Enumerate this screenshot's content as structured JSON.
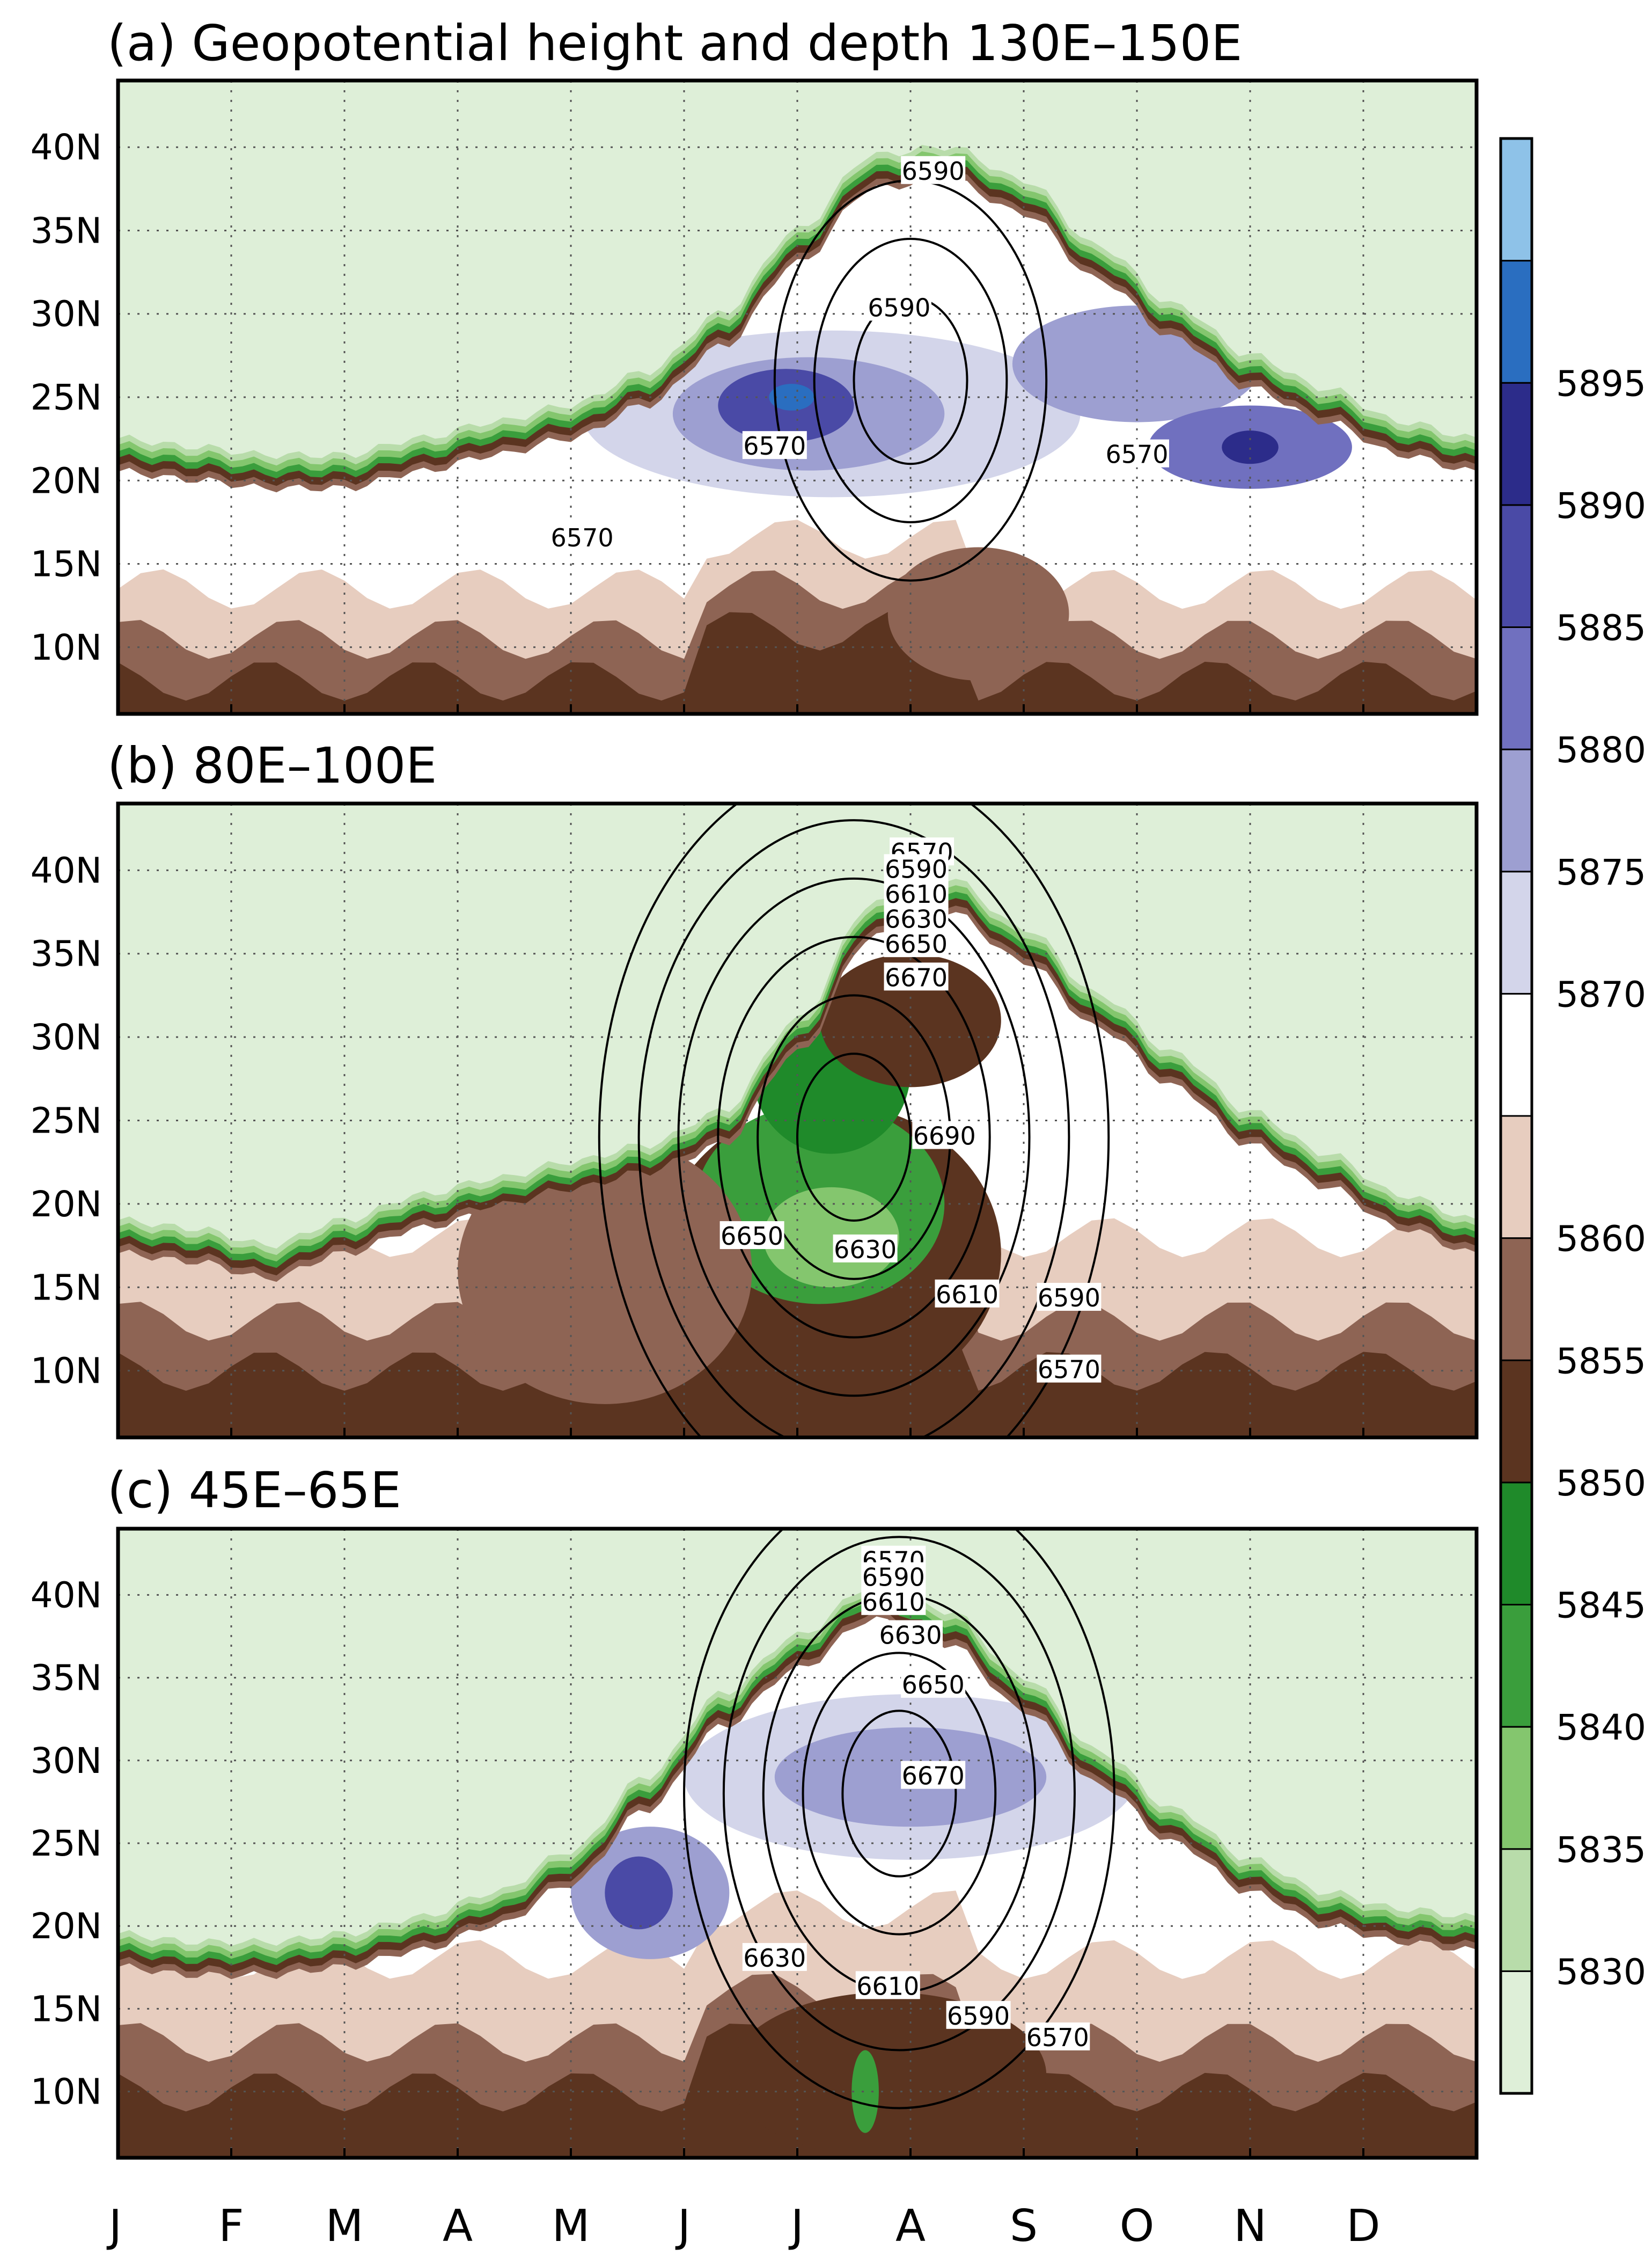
{
  "chart_data": {
    "type": "heatmap",
    "xlabel": "",
    "ylabel": "",
    "x_ticks": [
      "J",
      "F",
      "M",
      "A",
      "M",
      "J",
      "J",
      "A",
      "S",
      "O",
      "N",
      "D"
    ],
    "y_ticks": [
      "10N",
      "15N",
      "20N",
      "25N",
      "30N",
      "35N",
      "40N"
    ],
    "y_range": [
      6,
      44
    ],
    "colorbar": {
      "levels": [
        "5830",
        "5835",
        "5840",
        "5845",
        "5850",
        "5855",
        "5860",
        "5870",
        "5875",
        "5880",
        "5885",
        "5890",
        "5895"
      ],
      "colors": [
        "#deefd8",
        "#b8dcaa",
        "#84c66e",
        "#3a9e3c",
        "#1f8a2a",
        "#5b3420",
        "#8e6454",
        "#e7cdbf",
        "#ffffff",
        "#d3d5ea",
        "#9d9fd1",
        "#7070bf",
        "#4a4aa6",
        "#2c2c8a",
        "#2a6ec0",
        "#8ec2e8"
      ]
    },
    "panels": [
      {
        "title": "(a) Geopotential height and depth   130E–150E",
        "contour_labels": [
          "6590",
          "6590",
          "6570",
          "6570",
          "6570"
        ],
        "boundary_lat": [
          21.5,
          21,
          20.5,
          20.5,
          21.5,
          22.5,
          23.5,
          25.5,
          29,
          34,
          38.5,
          39,
          37,
          33,
          29.5,
          26.5,
          24.5,
          22.5,
          21.5
        ]
      },
      {
        "title": "(b) 80E–100E",
        "contour_labels": [
          "6570",
          "6590",
          "6610",
          "6630",
          "6650",
          "6670",
          "6690",
          "6650",
          "6630",
          "6610",
          "6590",
          "6570"
        ],
        "boundary_lat": [
          18,
          17.5,
          16.5,
          18,
          19.5,
          20.5,
          21.5,
          22.5,
          24.5,
          30,
          37,
          38.5,
          35.5,
          31.5,
          28,
          24.5,
          22,
          19.5,
          18
        ]
      },
      {
        "title": "(c) 45E–65E",
        "contour_labels": [
          "6570",
          "6590",
          "6610",
          "6630",
          "6650",
          "6670",
          "6630",
          "6610",
          "6590",
          "6570"
        ],
        "boundary_lat": [
          18.5,
          18,
          18,
          18.5,
          19.5,
          21,
          23.5,
          28,
          33,
          36.5,
          39.5,
          38,
          34,
          29.5,
          26,
          23,
          21,
          20,
          19.5
        ]
      }
    ]
  }
}
